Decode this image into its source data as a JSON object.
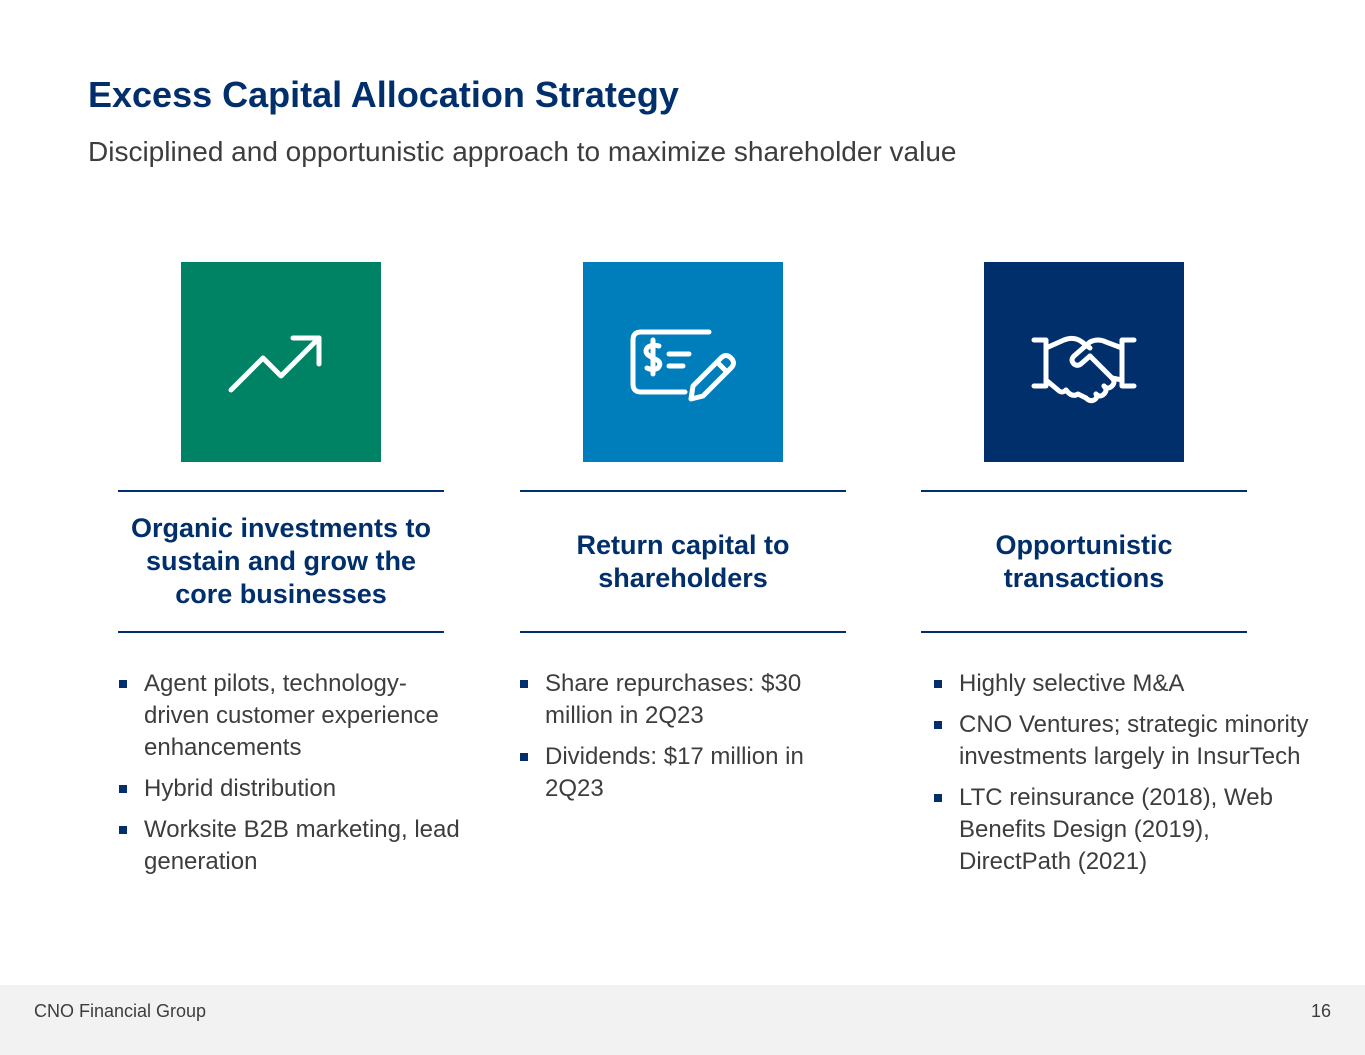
{
  "slide": {
    "title": "Excess Capital Allocation Strategy",
    "subtitle": "Disciplined and opportunistic approach to maximize shareholder value"
  },
  "columns": [
    {
      "icon": "trending-up-icon",
      "color": "#008264",
      "heading": "Organic investments to sustain and grow the core businesses",
      "bullets": [
        "Agent pilots, technology-driven customer experience enhancements",
        "Hybrid distribution",
        "Worksite B2B marketing, lead generation"
      ]
    },
    {
      "icon": "check-dollar-pen-icon",
      "color": "#007dbb",
      "heading": "Return capital to shareholders",
      "bullets": [
        "Share repurchases: $30 million in 2Q23",
        "Dividends: $17 million in 2Q23"
      ]
    },
    {
      "icon": "handshake-icon",
      "color": "#002f6c",
      "heading": "Opportunistic transactions",
      "bullets": [
        "Highly selective M&A",
        "CNO Ventures; strategic minority investments largely in InsurTech",
        "LTC reinsurance (2018), Web Benefits Design (2019), DirectPath (2021)"
      ]
    }
  ],
  "footer": {
    "company": "CNO Financial Group",
    "page_number": "16"
  }
}
